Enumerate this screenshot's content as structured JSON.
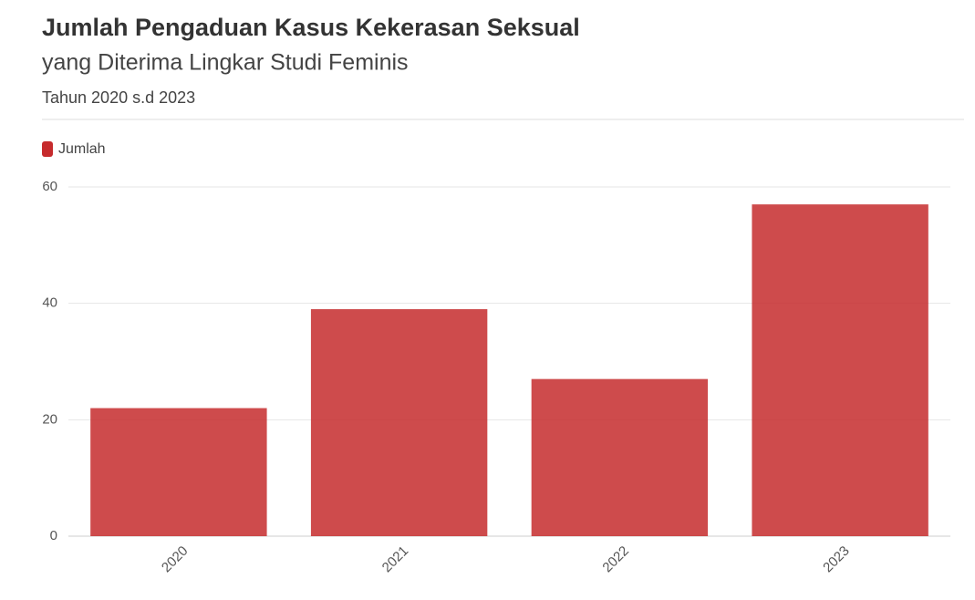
{
  "chart_data": {
    "type": "bar",
    "title": "Jumlah Pengaduan Kasus Kekerasan Seksual",
    "subtitle": "yang Diterima Lingkar Studi Feminis",
    "note": "Tahun 2020 s.d 2023",
    "categories": [
      "2020",
      "2021",
      "2022",
      "2023"
    ],
    "series": [
      {
        "name": "Jumlah",
        "color": "#c62b2d",
        "values": [
          22,
          39,
          27,
          57
        ]
      }
    ],
    "ylim": [
      0,
      60
    ],
    "yticks": [
      0,
      20,
      40,
      60
    ],
    "grid": true
  }
}
